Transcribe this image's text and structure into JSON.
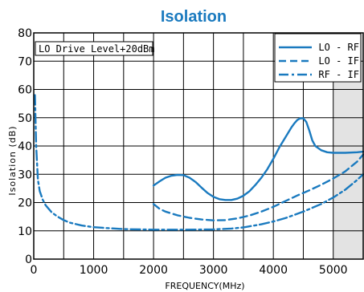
{
  "chart_data": {
    "type": "line",
    "title": "Isolation",
    "xlabel": "FREQUENCY(MHz)",
    "ylabel": "Isolation (dB)",
    "xlim": [
      0,
      5500
    ],
    "ylim": [
      0,
      80
    ],
    "xticks": [
      0,
      1000,
      2000,
      3000,
      4000,
      5000
    ],
    "yticks": [
      0,
      10,
      20,
      30,
      40,
      50,
      60,
      70,
      80
    ],
    "xtick_labels": [
      "0",
      "1000",
      "2000",
      "3000",
      "4000",
      "5000"
    ],
    "ytick_labels": [
      "0",
      "10",
      "20",
      "30",
      "40",
      "50",
      "60",
      "70",
      "80"
    ],
    "grid": true,
    "legend_position": "top-right",
    "annotation": "LO Drive Level+20dBm",
    "shaded_region": [
      5000,
      5500
    ],
    "colors": {
      "title": "#1a7abf",
      "line": "#1a7abf",
      "shade": "#e3e3e3"
    },
    "series": [
      {
        "name": "LO - RF",
        "style": "solid",
        "x": [
          2000,
          2100,
          2200,
          2300,
          2400,
          2500,
          2600,
          2700,
          2800,
          2900,
          3000,
          3100,
          3200,
          3300,
          3400,
          3500,
          3600,
          3700,
          3800,
          3900,
          4000,
          4100,
          4200,
          4300,
          4350,
          4400,
          4450,
          4500,
          4550,
          4600,
          4650,
          4700,
          4800,
          4900,
          5000,
          5200,
          5400,
          5500
        ],
        "y": [
          26,
          27.5,
          28.8,
          29.5,
          29.8,
          29.7,
          28.8,
          27.3,
          25.3,
          23.4,
          22.0,
          21.2,
          20.9,
          20.9,
          21.4,
          22.4,
          24.0,
          26.2,
          28.8,
          31.8,
          35.5,
          39.5,
          43,
          46.5,
          48,
          49.2,
          49.8,
          49.8,
          48.5,
          45.5,
          42,
          40,
          38.5,
          37.8,
          37.6,
          37.6,
          37.8,
          38
        ]
      },
      {
        "name": "LO - IF",
        "style": "dashed",
        "x": [
          2000,
          2100,
          2200,
          2400,
          2600,
          2800,
          3000,
          3200,
          3400,
          3600,
          3800,
          4000,
          4200,
          4400,
          4600,
          4800,
          5000,
          5200,
          5400,
          5500
        ],
        "y": [
          19.5,
          17.8,
          16.8,
          15.5,
          14.6,
          14.0,
          13.7,
          13.8,
          14.4,
          15.4,
          16.8,
          18.5,
          20.5,
          22.5,
          24.3,
          26.3,
          28.5,
          31.0,
          34.5,
          37
        ]
      },
      {
        "name": "RF - IF",
        "style": "dashdot",
        "x": [
          20,
          40,
          70,
          100,
          150,
          200,
          300,
          400,
          500,
          600,
          800,
          1000,
          1200,
          1500,
          2000,
          2500,
          3000,
          3300,
          3500,
          3800,
          4000,
          4200,
          4500,
          4800,
          5000,
          5200,
          5400,
          5500
        ],
        "y": [
          58,
          40,
          28,
          24,
          21,
          19,
          16.5,
          15,
          13.8,
          12.9,
          11.9,
          11.3,
          11.0,
          10.6,
          10.4,
          10.4,
          10.5,
          10.8,
          11.2,
          12.3,
          13.3,
          14.5,
          16.8,
          19.5,
          21.8,
          24.5,
          28.0,
          30
        ]
      }
    ]
  }
}
